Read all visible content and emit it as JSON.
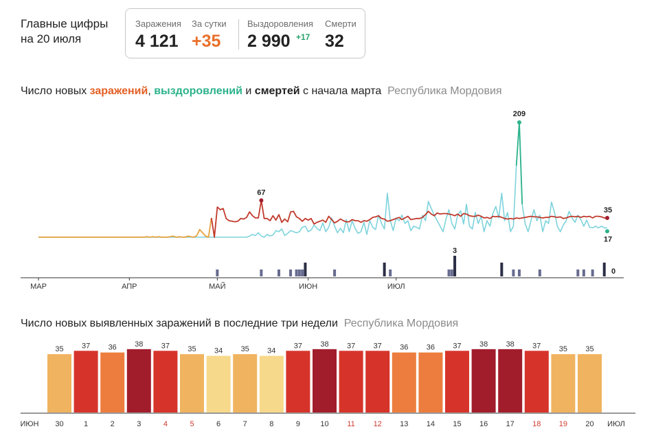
{
  "headline": {
    "line1": "Главные цифры",
    "line2": "на 20 июля"
  },
  "summary": {
    "infections_label": "Заражения",
    "infections_value": "4 121",
    "day_label": "За сутки",
    "day_value": "+35",
    "recovered_label": "Выздоровления",
    "recovered_value": "2 990",
    "recovered_delta": "+17",
    "deaths_label": "Смерти",
    "deaths_value": "32"
  },
  "colors": {
    "infections": "#c0392b",
    "infections_early": "#e8a23e",
    "recovered": "#7ed3dc",
    "recovered_peak": "#2cb28b",
    "deaths": "#3b3f5c"
  },
  "chart_data": [
    {
      "type": "line",
      "title_parts": {
        "prefix": "Число новых ",
        "infections": "заражений",
        "sep": ", ",
        "recovered": "выздоровлений",
        "and": " и ",
        "deaths": "смертей",
        "suffix": " с начала марта",
        "region": "Республика Мордовия"
      },
      "x_ticks": [
        "МАР",
        "АПР",
        "МАЙ",
        "ИЮН",
        "ИЮЛ"
      ],
      "x_tick_day_index": [
        0,
        31,
        61,
        92,
        122
      ],
      "ylim": [
        0,
        209
      ],
      "start_date": "2020-03-01",
      "annotations": {
        "infections_peak": "67",
        "recovered_peak": "209",
        "infections_last": "35",
        "recovered_last": "17",
        "deaths_peak": "3",
        "deaths_last": "0"
      },
      "series": [
        {
          "key": "infections",
          "values": [
            0,
            0,
            0,
            0,
            0,
            0,
            0,
            0,
            0,
            0,
            0,
            0,
            0,
            0,
            0,
            0,
            0,
            0,
            0,
            0,
            0,
            0,
            0,
            0,
            0,
            0,
            0,
            0,
            0,
            0,
            0,
            0,
            0,
            0,
            0,
            0,
            0,
            1,
            0,
            1,
            0,
            1,
            0,
            0,
            0,
            1,
            2,
            0,
            1,
            0,
            0,
            2,
            1,
            0,
            3,
            14,
            8,
            2,
            0,
            35,
            0,
            55,
            50,
            52,
            34,
            30,
            29,
            28,
            29,
            34,
            33,
            36,
            46,
            39,
            35,
            35,
            67,
            34,
            34,
            30,
            39,
            31,
            41,
            27,
            33,
            28,
            46,
            47,
            37,
            34,
            29,
            34,
            31,
            34,
            24,
            27,
            29,
            31,
            27,
            38,
            32,
            26,
            29,
            33,
            30,
            28,
            28,
            32,
            30,
            30,
            27,
            30,
            29,
            32,
            36,
            37,
            39,
            34,
            33,
            29,
            30,
            32,
            34,
            36,
            32,
            35,
            38,
            32,
            33,
            34,
            34,
            36,
            41,
            47,
            42,
            39,
            44,
            42,
            43,
            43,
            42,
            41,
            39,
            42,
            38,
            43,
            42,
            39,
            38,
            38,
            40,
            38,
            35,
            36,
            34,
            38,
            37,
            38,
            36,
            34,
            33,
            34,
            33,
            35,
            34,
            35,
            36,
            37,
            38,
            37,
            37,
            36,
            35,
            36,
            36,
            38,
            37,
            36,
            37,
            34,
            35,
            37,
            38,
            37,
            38,
            36,
            38,
            37,
            38,
            35,
            38,
            38,
            37,
            35,
            35
          ]
        },
        {
          "key": "recovered",
          "values": [
            0,
            0,
            0,
            0,
            0,
            0,
            0,
            0,
            0,
            0,
            0,
            0,
            0,
            0,
            0,
            0,
            0,
            0,
            0,
            0,
            0,
            0,
            0,
            0,
            0,
            0,
            0,
            0,
            0,
            0,
            0,
            0,
            0,
            0,
            0,
            0,
            0,
            0,
            0,
            0,
            0,
            0,
            0,
            0,
            0,
            0,
            0,
            0,
            0,
            0,
            0,
            0,
            0,
            0,
            0,
            0,
            0,
            0,
            0,
            0,
            0,
            0,
            0,
            0,
            0,
            0,
            0,
            0,
            0,
            0,
            0,
            0,
            2,
            5,
            3,
            8,
            2,
            0,
            5,
            2,
            4,
            12,
            10,
            15,
            3,
            7,
            12,
            10,
            8,
            10,
            18,
            20,
            10,
            13,
            22,
            16,
            12,
            26,
            10,
            18,
            35,
            20,
            8,
            16,
            8,
            32,
            10,
            30,
            16,
            7,
            10,
            27,
            5,
            30,
            18,
            14,
            40,
            25,
            15,
            80,
            30,
            12,
            35,
            30,
            40,
            25,
            30,
            12,
            20,
            18,
            15,
            40,
            30,
            65,
            52,
            40,
            30,
            20,
            10,
            33,
            50,
            25,
            15,
            40,
            48,
            24,
            60,
            20,
            15,
            45,
            25,
            38,
            10,
            30,
            20,
            43,
            56,
            35,
            80,
            30,
            45,
            10,
            20,
            130,
            209,
            60,
            25,
            10,
            30,
            50,
            30,
            40,
            10,
            30,
            25,
            64,
            45,
            20,
            10,
            22,
            30,
            47,
            35,
            27,
            40,
            32,
            20,
            31,
            18,
            17,
            20,
            17,
            20,
            17,
            17
          ]
        },
        {
          "key": "deaths",
          "values": [
            0,
            0,
            0,
            0,
            0,
            0,
            0,
            0,
            0,
            0,
            0,
            0,
            0,
            0,
            0,
            0,
            0,
            0,
            0,
            0,
            0,
            0,
            0,
            0,
            0,
            0,
            0,
            0,
            0,
            0,
            0,
            0,
            0,
            0,
            0,
            0,
            0,
            0,
            0,
            0,
            0,
            0,
            0,
            0,
            0,
            0,
            0,
            0,
            0,
            0,
            0,
            0,
            0,
            0,
            0,
            0,
            0,
            0,
            0,
            0,
            0,
            1,
            0,
            0,
            0,
            0,
            0,
            0,
            0,
            0,
            0,
            0,
            0,
            0,
            0,
            0,
            1,
            0,
            0,
            0,
            0,
            0,
            1,
            0,
            0,
            0,
            1,
            0,
            1,
            1,
            1,
            2,
            0,
            0,
            0,
            0,
            0,
            0,
            0,
            0,
            0,
            1,
            0,
            0,
            0,
            0,
            0,
            0,
            0,
            0,
            0,
            0,
            0,
            0,
            0,
            0,
            0,
            0,
            2,
            0,
            1,
            0,
            0,
            0,
            0,
            0,
            0,
            0,
            0,
            0,
            0,
            0,
            0,
            0,
            0,
            0,
            0,
            0,
            0,
            0,
            1,
            1,
            3,
            0,
            0,
            0,
            0,
            0,
            0,
            0,
            0,
            0,
            0,
            0,
            0,
            0,
            0,
            0,
            2,
            0,
            0,
            0,
            1,
            0,
            1,
            0,
            0,
            0,
            0,
            0,
            0,
            1,
            0,
            0,
            0,
            0,
            0,
            0,
            0,
            0,
            0,
            0,
            0,
            0,
            1,
            0,
            1,
            0,
            0,
            1,
            0,
            0,
            0,
            2,
            0,
            0
          ]
        }
      ]
    },
    {
      "type": "bar",
      "title": "Число новых выявленных заражений в последние три недели",
      "region": "Республика Мордовия",
      "month_left": "ИЮН",
      "month_right": "ИЮЛ",
      "categories": [
        "30",
        "1",
        "2",
        "3",
        "4",
        "5",
        "6",
        "7",
        "8",
        "9",
        "10",
        "11",
        "12",
        "13",
        "14",
        "15",
        "16",
        "17",
        "18",
        "19",
        "20"
      ],
      "weekend": [
        false,
        false,
        false,
        false,
        true,
        true,
        false,
        false,
        false,
        false,
        false,
        true,
        true,
        false,
        false,
        false,
        false,
        false,
        true,
        true,
        false
      ],
      "values": [
        35,
        37,
        36,
        38,
        37,
        35,
        34,
        35,
        34,
        37,
        38,
        37,
        37,
        36,
        36,
        37,
        38,
        38,
        37,
        35,
        35
      ],
      "value_labels": [
        "35",
        "37",
        "36",
        "38",
        "37",
        "35",
        "34",
        "35",
        "34",
        "37",
        "38",
        "37",
        "37",
        "36",
        "36",
        "37",
        "38",
        "38",
        "37",
        "35",
        "35"
      ],
      "color_scale": {
        "34": "#f7d98b",
        "35": "#f0b35f",
        "36": "#ec7d3e",
        "37": "#d6342b",
        "38": "#a11d2c"
      },
      "weekend_color": "#d03a2f",
      "ylim": [
        0,
        40
      ]
    }
  ]
}
